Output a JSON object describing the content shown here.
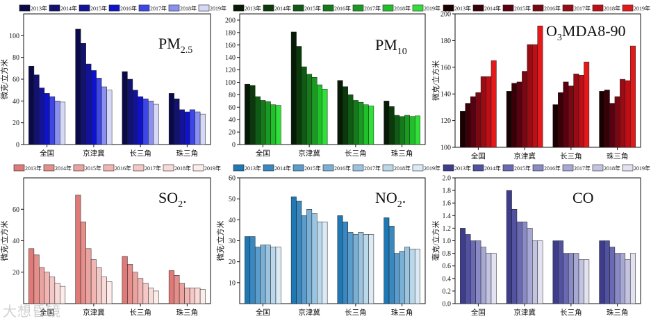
{
  "years": [
    "2013年",
    "2014年",
    "2015年",
    "2016年",
    "2017年",
    "2018年",
    "2019年"
  ],
  "regions": [
    "全国",
    "京津冀",
    "长三角",
    "珠三角"
  ],
  "watermark": "大想昏镜",
  "chart_data": [
    {
      "type": "bar",
      "id": "pm25",
      "title_main": "PM",
      "title_sub": "2.5",
      "title_after": "",
      "ylabel": "微克/立方米",
      "ylim": [
        0,
        120
      ],
      "yticks": [
        0,
        20,
        40,
        60,
        80,
        100
      ],
      "categories": [
        "全国",
        "京津冀",
        "长三角",
        "珠三角"
      ],
      "series_names": [
        "2013年",
        "2014年",
        "2015年",
        "2016年",
        "2017年",
        "2018年",
        "2019年"
      ],
      "values": [
        [
          72,
          64,
          52,
          47,
          44,
          40,
          39
        ],
        [
          106,
          93,
          74,
          68,
          61,
          53,
          50
        ],
        [
          67,
          60,
          50,
          44,
          42,
          40,
          37
        ],
        [
          47,
          42,
          32,
          30,
          32,
          30,
          28
        ]
      ],
      "colors": [
        "#0a0a4a",
        "#121270",
        "#12129a",
        "#0f12cc",
        "#3d46e6",
        "#8a90f0",
        "#d6d8f8"
      ]
    },
    {
      "type": "bar",
      "id": "pm10",
      "title_main": "PM",
      "title_sub": "10",
      "title_after": "",
      "ylabel": "",
      "ylim": [
        0,
        210
      ],
      "yticks": [
        0,
        20,
        40,
        60,
        80,
        100,
        120,
        140,
        160,
        180,
        200
      ],
      "categories": [
        "全国",
        "京津冀",
        "长三角",
        "珠三角"
      ],
      "series_names": [
        "2013年",
        "2014年",
        "2015年",
        "2016年",
        "2017年",
        "2018年",
        "2019年"
      ],
      "values": [
        [
          97,
          95,
          77,
          71,
          69,
          64,
          63
        ],
        [
          181,
          158,
          125,
          113,
          108,
          96,
          89
        ],
        [
          103,
          93,
          80,
          71,
          68,
          64,
          62
        ],
        [
          70,
          61,
          47,
          45,
          47,
          45,
          46
        ]
      ],
      "colors": [
        "#061a06",
        "#0a3a0a",
        "#0f5a14",
        "#157a1a",
        "#1a9a22",
        "#20c02a",
        "#30e038"
      ]
    },
    {
      "type": "bar",
      "id": "o3",
      "title_main": "O",
      "title_sub": "3",
      "title_after": "MDA8-90",
      "ylabel": "微克/立方米",
      "ylim": [
        100,
        200
      ],
      "yticks": [
        100,
        120,
        140,
        160,
        180,
        200
      ],
      "categories": [
        "全国",
        "京津冀",
        "长三角",
        "珠三角"
      ],
      "series_names": [
        "2013年",
        "2014年",
        "2015年",
        "2016年",
        "2017年",
        "2018年",
        "2019年"
      ],
      "values": [
        [
          127,
          133,
          138,
          141,
          153,
          153,
          165
        ],
        [
          142,
          148,
          149,
          157,
          177,
          177,
          191
        ],
        [
          132,
          141,
          149,
          146,
          155,
          154,
          164
        ],
        [
          142,
          143,
          133,
          138,
          151,
          150,
          176
        ]
      ],
      "colors": [
        "#1a0000",
        "#3a0008",
        "#5a0010",
        "#7a0812",
        "#9a0c14",
        "#c00e16",
        "#e41a1a"
      ]
    },
    {
      "type": "bar",
      "id": "so2",
      "title_main": "SO",
      "title_sub": "2",
      "title_after": ".",
      "ylabel": "微克/立方米",
      "ylim": [
        0,
        80
      ],
      "yticks": [
        20,
        40,
        60
      ],
      "categories": [
        "全国",
        "京津冀",
        "长三角",
        "珠三角"
      ],
      "series_names": [
        "2013年",
        "2014年",
        "2015年",
        "2016年",
        "2017年",
        "2018年",
        "2019年"
      ],
      "values": [
        [
          35,
          31,
          23,
          20,
          17,
          13,
          11
        ],
        [
          69,
          52,
          35,
          28,
          23,
          17,
          14
        ],
        [
          30,
          25,
          20,
          16,
          13,
          10,
          8
        ],
        [
          21,
          18,
          13,
          10,
          10,
          10,
          9
        ]
      ],
      "colors": [
        "#e07a78",
        "#e58f8c",
        "#eba3a0",
        "#f0b6b3",
        "#f4c8c6",
        "#f8dbd9",
        "#fcecea"
      ]
    },
    {
      "type": "bar",
      "id": "no2",
      "title_main": "NO",
      "title_sub": "2",
      "title_after": ".",
      "ylabel": "微克/立方米",
      "ylim": [
        0,
        60
      ],
      "yticks": [
        10,
        20,
        30,
        40,
        50,
        60
      ],
      "categories": [
        "全国",
        "京津冀",
        "长三角",
        "珠三角"
      ],
      "series_names": [
        "2013年",
        "2014年",
        "2015年",
        "2016年",
        "2017年",
        "2018年",
        "2019年"
      ],
      "values": [
        [
          32,
          32,
          27,
          28,
          28,
          27,
          27
        ],
        [
          51,
          49,
          42,
          45,
          43,
          39,
          39
        ],
        [
          42,
          39,
          34,
          33,
          34,
          33,
          33
        ],
        [
          41,
          37,
          24,
          25,
          27,
          26,
          26
        ]
      ],
      "colors": [
        "#1f78b4",
        "#3a88c0",
        "#5a9ccb",
        "#7ab0d6",
        "#9ac4e0",
        "#bad8ea",
        "#dbeaf4"
      ]
    },
    {
      "type": "bar",
      "id": "co",
      "title_main": "CO",
      "title_sub": "",
      "title_after": "",
      "ylabel": "毫克/立方米",
      "ylim": [
        0,
        2.0
      ],
      "yticks": [
        0.0,
        0.2,
        0.4,
        0.6,
        0.8,
        1.0,
        1.2,
        1.4,
        1.6,
        1.8,
        2.0
      ],
      "categories": [
        "全国",
        "京津冀",
        "长三角",
        "珠三角"
      ],
      "series_names": [
        "2013年",
        "2014年",
        "2015年",
        "2016年",
        "2017年",
        "2018年",
        "2019年"
      ],
      "values": [
        [
          1.2,
          1.1,
          1.0,
          1.0,
          0.9,
          0.8,
          0.8
        ],
        [
          1.8,
          1.5,
          1.3,
          1.3,
          1.2,
          1.0,
          1.0
        ],
        [
          1.0,
          1.0,
          0.8,
          0.8,
          0.8,
          0.7,
          0.7
        ],
        [
          1.0,
          1.0,
          0.9,
          0.8,
          0.8,
          0.7,
          0.8
        ]
      ],
      "colors": [
        "#3d3d8c",
        "#5252a0",
        "#6a6ab4",
        "#8a8ac4",
        "#a8a8d4",
        "#c4c4e2",
        "#e2e2f0"
      ]
    }
  ]
}
